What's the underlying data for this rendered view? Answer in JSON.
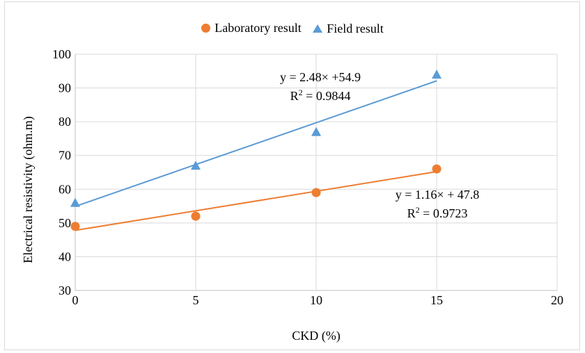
{
  "chart_data": {
    "type": "scatter",
    "title": "",
    "xlabel": "CKD (%)",
    "ylabel": "Electrical resistivity (ohm.m)",
    "xlim": [
      0,
      20
    ],
    "ylim": [
      30,
      100
    ],
    "xticks": [
      0,
      5,
      10,
      15,
      20
    ],
    "yticks": [
      30,
      40,
      50,
      60,
      70,
      80,
      90,
      100
    ],
    "grid": true,
    "legend_position": "top",
    "series": [
      {
        "name": "Laboratory result",
        "marker": "circle",
        "color": "#ed7d31",
        "x": [
          0,
          5,
          10,
          15
        ],
        "y": [
          49,
          52,
          59,
          66
        ],
        "trendline": {
          "slope": 1.16,
          "intercept": 47.8
        },
        "equation": "y = 1.16× + 47.8",
        "r2_prefix": "R",
        "r2_value": " = 0.9723"
      },
      {
        "name": "Field result",
        "marker": "triangle",
        "color": "#5b9bd5",
        "x": [
          0,
          5,
          10,
          15
        ],
        "y": [
          56,
          67,
          77,
          94
        ],
        "trendline": {
          "slope": 2.48,
          "intercept": 54.9
        },
        "equation": "y = 2.48× +54.9",
        "r2_prefix": "R",
        "r2_value": " = 0.9844"
      }
    ]
  }
}
